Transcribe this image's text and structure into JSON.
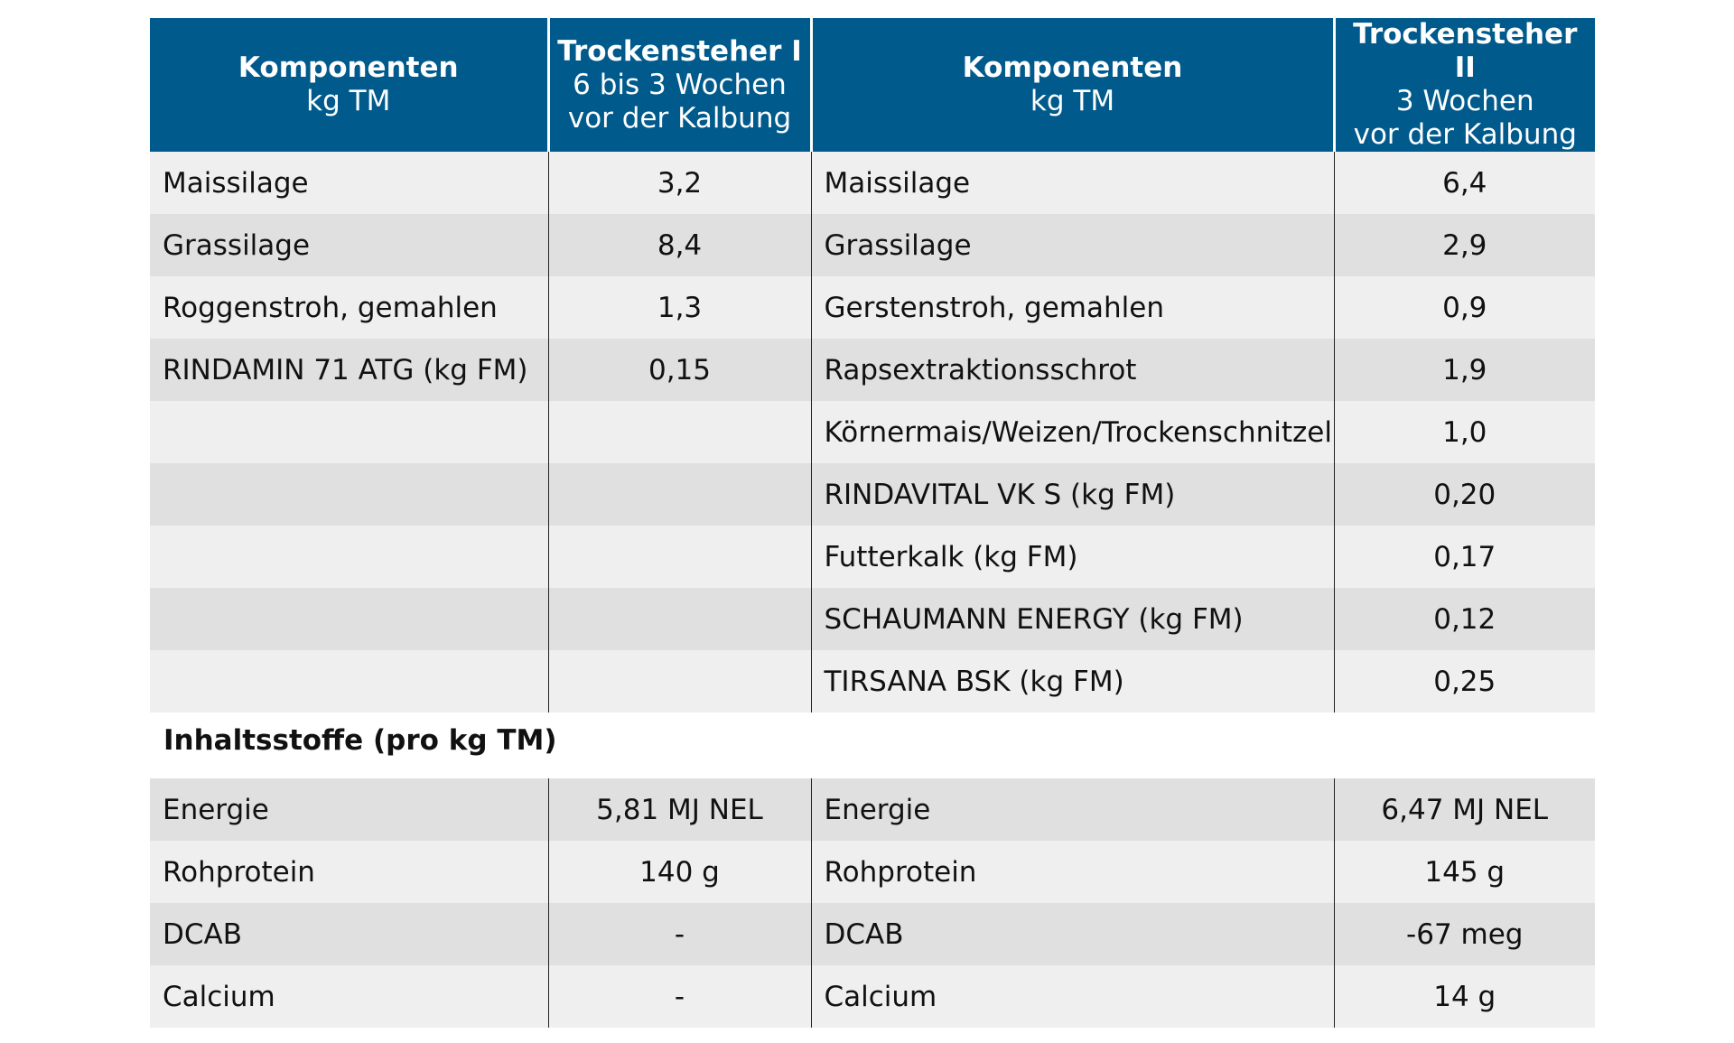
{
  "headers": {
    "col1": {
      "title": "Komponenten",
      "sub1": "kg TM",
      "sub2": ""
    },
    "col2": {
      "title": "Trockensteher I",
      "sub1": "6 bis 3 Wochen",
      "sub2": "vor der Kalbung"
    },
    "col3": {
      "title": "Komponenten",
      "sub1": "kg TM",
      "sub2": ""
    },
    "col4": {
      "title": "Trockensteher II",
      "sub1": "3 Wochen",
      "sub2": "vor der Kalbung"
    }
  },
  "rows": [
    {
      "c1": "Maissilage",
      "c2": "3,2",
      "c3": "Maissilage",
      "c4": "6,4"
    },
    {
      "c1": "Grassilage",
      "c2": "8,4",
      "c3": "Grassilage",
      "c4": "2,9"
    },
    {
      "c1": "Roggenstroh, gemahlen",
      "c2": "1,3",
      "c3": "Gerstenstroh, gemahlen",
      "c4": "0,9"
    },
    {
      "c1": "RINDAMIN 71 ATG (kg FM)",
      "c2": "0,15",
      "c3": "Rapsextraktionsschrot",
      "c4": "1,9"
    },
    {
      "c1": "",
      "c2": "",
      "c3": "Körnermais/Weizen/Trockenschnitzel",
      "c4": "1,0"
    },
    {
      "c1": "",
      "c2": "",
      "c3": "RINDAVITAL VK S (kg FM)",
      "c4": "0,20"
    },
    {
      "c1": "",
      "c2": "",
      "c3": "Futterkalk (kg FM)",
      "c4": "0,17"
    },
    {
      "c1": "",
      "c2": "",
      "c3": "SCHAUMANN ENERGY (kg FM)",
      "c4": "0,12"
    },
    {
      "c1": "",
      "c2": "",
      "c3": "TIRSANA BSK (kg FM)",
      "c4": "0,25"
    }
  ],
  "section_title": "Inhaltsstoffe (pro kg TM)",
  "nutrients": [
    {
      "c1": "Energie",
      "c2": "5,81 MJ NEL",
      "c3": "Energie",
      "c4": "6,47 MJ NEL"
    },
    {
      "c1": "Rohprotein",
      "c2": "140 g",
      "c3": "Rohprotein",
      "c4": "145 g"
    },
    {
      "c1": "DCAB",
      "c2": "-",
      "c3": "DCAB",
      "c4": "-67 meg"
    },
    {
      "c1": "Calcium",
      "c2": "-",
      "c3": "Calcium",
      "c4": "14 g"
    }
  ],
  "colors": {
    "header_bg": "#005a8c",
    "row_light": "#efefef",
    "row_dark": "#e0e0e0"
  }
}
